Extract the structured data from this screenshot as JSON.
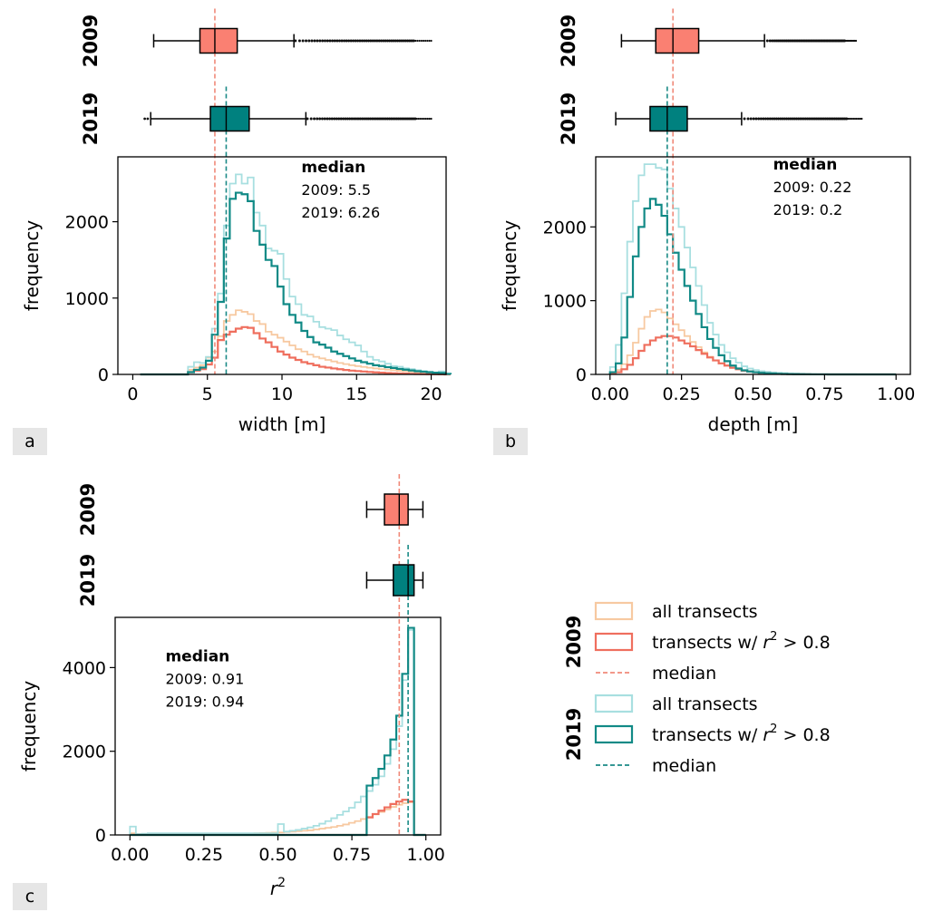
{
  "panel_labels": [
    "a",
    "b",
    "c"
  ],
  "legend": {
    "groups": [
      {
        "year": "2009",
        "items": [
          {
            "label_pre": "all transects",
            "kind": "box",
            "color": "#f7c9a1"
          },
          {
            "label_pre": "transects w/",
            "math": "r",
            "sup": "2",
            "label_post": " > 0.8",
            "kind": "box",
            "color": "#ef6f5e"
          },
          {
            "label_pre": "median",
            "kind": "dash",
            "color": "#f08a7a"
          }
        ]
      },
      {
        "year": "2019",
        "items": [
          {
            "label_pre": "all transects",
            "kind": "box",
            "color": "#a8dfe0"
          },
          {
            "label_pre": "transects w/",
            "math": "r",
            "sup": "2",
            "label_post": " > 0.8",
            "kind": "box",
            "color": "#118a86"
          },
          {
            "label_pre": "median",
            "kind": "dash",
            "color": "#1a8a86"
          }
        ]
      }
    ]
  },
  "colors": {
    "box_2009": "#fa8072",
    "box_2019": "#00817f",
    "median_2009": "#f08a7a",
    "median_2019": "#1a8a86",
    "all_2009": "#f7c9a1",
    "filt_2009": "#ef6f5e",
    "all_2019": "#a8dfe0",
    "filt_2019": "#118a86"
  },
  "chart_data": [
    {
      "type": "histogram",
      "panel": "a",
      "xlabel": "width [m]",
      "ylabel": "frequency",
      "xlim": [
        -1,
        21
      ],
      "ylim": [
        0,
        2850
      ],
      "xticks": [
        0,
        5,
        10,
        15,
        20
      ],
      "xtick_labels": [
        "0",
        "5",
        "10",
        "15",
        "20"
      ],
      "yticks": [
        0,
        1000,
        2000
      ],
      "ytick_labels": [
        "0",
        "1000",
        "2000"
      ],
      "annotation": {
        "title": "median",
        "lines": [
          "2009: 5.5",
          "2019: 6.26"
        ],
        "pos": [
          11.3,
          2650
        ]
      },
      "medians": {
        "2009": 5.5,
        "2019": 6.26
      },
      "bin_start": 0.5,
      "bin_width": 0.4,
      "series": [
        {
          "key": "all_2009",
          "values": [
            0,
            0,
            0,
            0,
            0,
            0,
            0,
            0,
            60,
            90,
            120,
            220,
            300,
            500,
            700,
            780,
            840,
            820,
            790,
            700,
            660,
            560,
            520,
            480,
            430,
            380,
            330,
            300,
            260,
            230,
            210,
            190,
            170,
            150,
            135,
            120,
            108,
            98,
            88,
            78,
            70,
            62,
            55,
            48,
            42,
            36,
            30,
            25,
            20,
            16,
            12,
            8
          ]
        },
        {
          "key": "filt_2009",
          "values": [
            0,
            0,
            0,
            0,
            0,
            0,
            0,
            0,
            30,
            50,
            70,
            130,
            220,
            450,
            520,
            560,
            600,
            620,
            610,
            540,
            470,
            420,
            360,
            300,
            260,
            220,
            190,
            160,
            140,
            120,
            100,
            90,
            78,
            68,
            58,
            50,
            44,
            38,
            32,
            27,
            22,
            18,
            15,
            12,
            10,
            8,
            6,
            4,
            3,
            2,
            1,
            0
          ]
        },
        {
          "key": "all_2019",
          "values": [
            0,
            0,
            0,
            0,
            0,
            0,
            0,
            0,
            100,
            160,
            150,
            230,
            600,
            1060,
            1950,
            2500,
            2620,
            2500,
            2580,
            2120,
            1950,
            1650,
            1620,
            1580,
            1250,
            1020,
            920,
            780,
            760,
            690,
            620,
            600,
            580,
            510,
            460,
            420,
            380,
            300,
            230,
            190,
            170,
            140,
            110,
            100,
            80,
            70,
            55,
            45,
            35,
            20,
            40,
            15
          ]
        },
        {
          "key": "filt_2019",
          "values": [
            0,
            0,
            0,
            0,
            0,
            0,
            0,
            0,
            30,
            60,
            90,
            180,
            520,
            950,
            1780,
            2300,
            2380,
            2360,
            2270,
            1880,
            1700,
            1500,
            1420,
            1150,
            920,
            780,
            680,
            570,
            490,
            420,
            390,
            350,
            300,
            270,
            240,
            210,
            180,
            160,
            140,
            120,
            110,
            95,
            85,
            72,
            62,
            52,
            42,
            35,
            28,
            22,
            20,
            5
          ]
        }
      ],
      "boxplots": [
        {
          "year": "2009",
          "whislo": 1.4,
          "q1": 4.5,
          "med": 5.5,
          "q3": 7.0,
          "whishi": 10.8,
          "fliers_range": [
            10.9,
            20
          ]
        },
        {
          "year": "2019",
          "whislo": 1.2,
          "q1": 5.2,
          "med": 6.26,
          "q3": 7.8,
          "whishi": 11.6,
          "fliers_range": [
            11.7,
            20
          ],
          "fliers_low": [
            0.8,
            1.0
          ]
        }
      ]
    },
    {
      "type": "histogram",
      "panel": "b",
      "xlabel": "depth [m]",
      "ylabel": "frequency",
      "xlim": [
        -0.05,
        1.05
      ],
      "ylim": [
        0,
        2950
      ],
      "xticks": [
        0,
        0.25,
        0.5,
        0.75,
        1.0
      ],
      "xtick_labels": [
        "0.00",
        "0.25",
        "0.50",
        "0.75",
        "1.00"
      ],
      "yticks": [
        0,
        1000,
        2000
      ],
      "ytick_labels": [
        "0",
        "1000",
        "2000"
      ],
      "annotation": {
        "title": "median",
        "lines": [
          "2009: 0.22",
          "2019: 0.2"
        ],
        "pos": [
          0.57,
          2780
        ]
      },
      "medians": {
        "2009": 0.22,
        "2019": 0.2
      },
      "bin_start": 0.0,
      "bin_width": 0.02,
      "series": [
        {
          "key": "all_2009",
          "values": [
            20,
            60,
            140,
            260,
            430,
            620,
            780,
            860,
            880,
            840,
            760,
            680,
            600,
            520,
            440,
            370,
            300,
            240,
            190,
            150,
            120,
            90,
            70,
            50,
            40,
            30,
            22,
            16,
            12,
            8,
            6,
            4,
            3,
            2,
            2,
            1,
            1,
            1,
            0,
            0,
            0,
            0,
            0,
            0,
            0,
            0,
            0,
            0,
            0,
            0
          ]
        },
        {
          "key": "filt_2009",
          "values": [
            10,
            30,
            70,
            130,
            220,
            320,
            400,
            460,
            500,
            520,
            520,
            500,
            460,
            420,
            380,
            330,
            280,
            230,
            190,
            150,
            120,
            90,
            70,
            50,
            40,
            30,
            22,
            16,
            12,
            8,
            6,
            4,
            3,
            2,
            2,
            1,
            1,
            1,
            0,
            0,
            0,
            0,
            0,
            0,
            0,
            0,
            0,
            0,
            0,
            0
          ]
        },
        {
          "key": "all_2019",
          "values": [
            100,
            400,
            1100,
            1800,
            2350,
            2700,
            2850,
            2850,
            2800,
            2780,
            2520,
            2250,
            2000,
            1720,
            1450,
            1200,
            940,
            700,
            540,
            400,
            300,
            220,
            160,
            110,
            80,
            60,
            45,
            35,
            28,
            22,
            18,
            15,
            12,
            10,
            8,
            6,
            5,
            4,
            3,
            3,
            2,
            2,
            2,
            1,
            1,
            1,
            1,
            0,
            0,
            0
          ]
        },
        {
          "key": "filt_2019",
          "values": [
            30,
            150,
            500,
            1050,
            1600,
            2000,
            2250,
            2380,
            2300,
            2150,
            1900,
            1650,
            1420,
            1200,
            1000,
            820,
            640,
            480,
            360,
            260,
            180,
            120,
            80,
            55,
            40,
            30,
            22,
            16,
            12,
            8,
            6,
            4,
            3,
            2,
            2,
            1,
            1,
            1,
            0,
            0,
            0,
            0,
            0,
            0,
            0,
            0,
            0,
            0,
            0,
            0
          ]
        }
      ],
      "boxplots": [
        {
          "year": "2009",
          "whislo": 0.04,
          "q1": 0.16,
          "med": 0.22,
          "q3": 0.31,
          "whishi": 0.54,
          "fliers_range": [
            0.55,
            0.86
          ]
        },
        {
          "year": "2019",
          "whislo": 0.02,
          "q1": 0.14,
          "med": 0.2,
          "q3": 0.27,
          "whishi": 0.46,
          "fliers_range": [
            0.47,
            0.88
          ]
        }
      ]
    },
    {
      "type": "histogram",
      "panel": "c",
      "xlabel_math": "r",
      "xlabel_sup": "2",
      "ylabel": "frequency",
      "xlim": [
        -0.05,
        1.05
      ],
      "ylim": [
        0,
        5200
      ],
      "xticks": [
        0,
        0.25,
        0.5,
        0.75,
        1.0
      ],
      "xtick_labels": [
        "0.00",
        "0.25",
        "0.50",
        "0.75",
        "1.00"
      ],
      "yticks": [
        0,
        2000,
        4000
      ],
      "ytick_labels": [
        "0",
        "2000",
        "4000"
      ],
      "annotation": {
        "title": "median",
        "lines": [
          "2009: 0.91",
          "2019: 0.94"
        ],
        "pos": [
          0.12,
          4150
        ]
      },
      "medians": {
        "2009": 0.91,
        "2019": 0.94
      },
      "bin_start": 0.0,
      "bin_width": 0.02,
      "series": [
        {
          "key": "all_2009",
          "values": [
            40,
            20,
            20,
            20,
            20,
            20,
            20,
            20,
            20,
            20,
            20,
            20,
            20,
            25,
            25,
            25,
            25,
            30,
            30,
            35,
            35,
            40,
            45,
            50,
            55,
            60,
            70,
            80,
            90,
            100,
            110,
            130,
            150,
            170,
            190,
            220,
            250,
            290,
            330,
            380,
            430,
            490,
            550,
            610,
            670,
            720,
            760,
            780,
            0,
            0
          ]
        },
        {
          "key": "filt_2009",
          "values": [
            0,
            0,
            0,
            0,
            0,
            0,
            0,
            0,
            0,
            0,
            0,
            0,
            0,
            0,
            0,
            0,
            0,
            0,
            0,
            0,
            0,
            0,
            0,
            0,
            0,
            0,
            0,
            0,
            0,
            0,
            0,
            0,
            0,
            0,
            0,
            0,
            0,
            0,
            0,
            0,
            420,
            500,
            580,
            660,
            740,
            800,
            840,
            800,
            0,
            0
          ]
        },
        {
          "key": "all_2019",
          "values": [
            200,
            20,
            30,
            40,
            40,
            40,
            40,
            40,
            40,
            40,
            40,
            40,
            40,
            40,
            40,
            40,
            40,
            40,
            40,
            40,
            40,
            40,
            40,
            40,
            40,
            260,
            80,
            100,
            120,
            150,
            180,
            220,
            270,
            330,
            400,
            480,
            560,
            650,
            780,
            920,
            1050,
            1200,
            1400,
            1700,
            2050,
            2600,
            3700,
            4900,
            0,
            0
          ]
        },
        {
          "key": "filt_2019",
          "values": [
            0,
            0,
            0,
            0,
            0,
            0,
            0,
            0,
            0,
            0,
            0,
            0,
            0,
            0,
            0,
            0,
            0,
            0,
            0,
            0,
            0,
            0,
            0,
            0,
            0,
            0,
            0,
            0,
            0,
            0,
            0,
            0,
            0,
            0,
            0,
            0,
            0,
            0,
            0,
            0,
            1180,
            1360,
            1580,
            1900,
            2280,
            2850,
            3850,
            4950,
            0,
            0
          ]
        }
      ],
      "boxplots": [
        {
          "year": "2009",
          "whislo": 0.8,
          "q1": 0.86,
          "med": 0.91,
          "q3": 0.94,
          "whishi": 0.99
        },
        {
          "year": "2019",
          "whislo": 0.8,
          "q1": 0.89,
          "med": 0.94,
          "q3": 0.96,
          "whishi": 0.99
        }
      ]
    }
  ]
}
